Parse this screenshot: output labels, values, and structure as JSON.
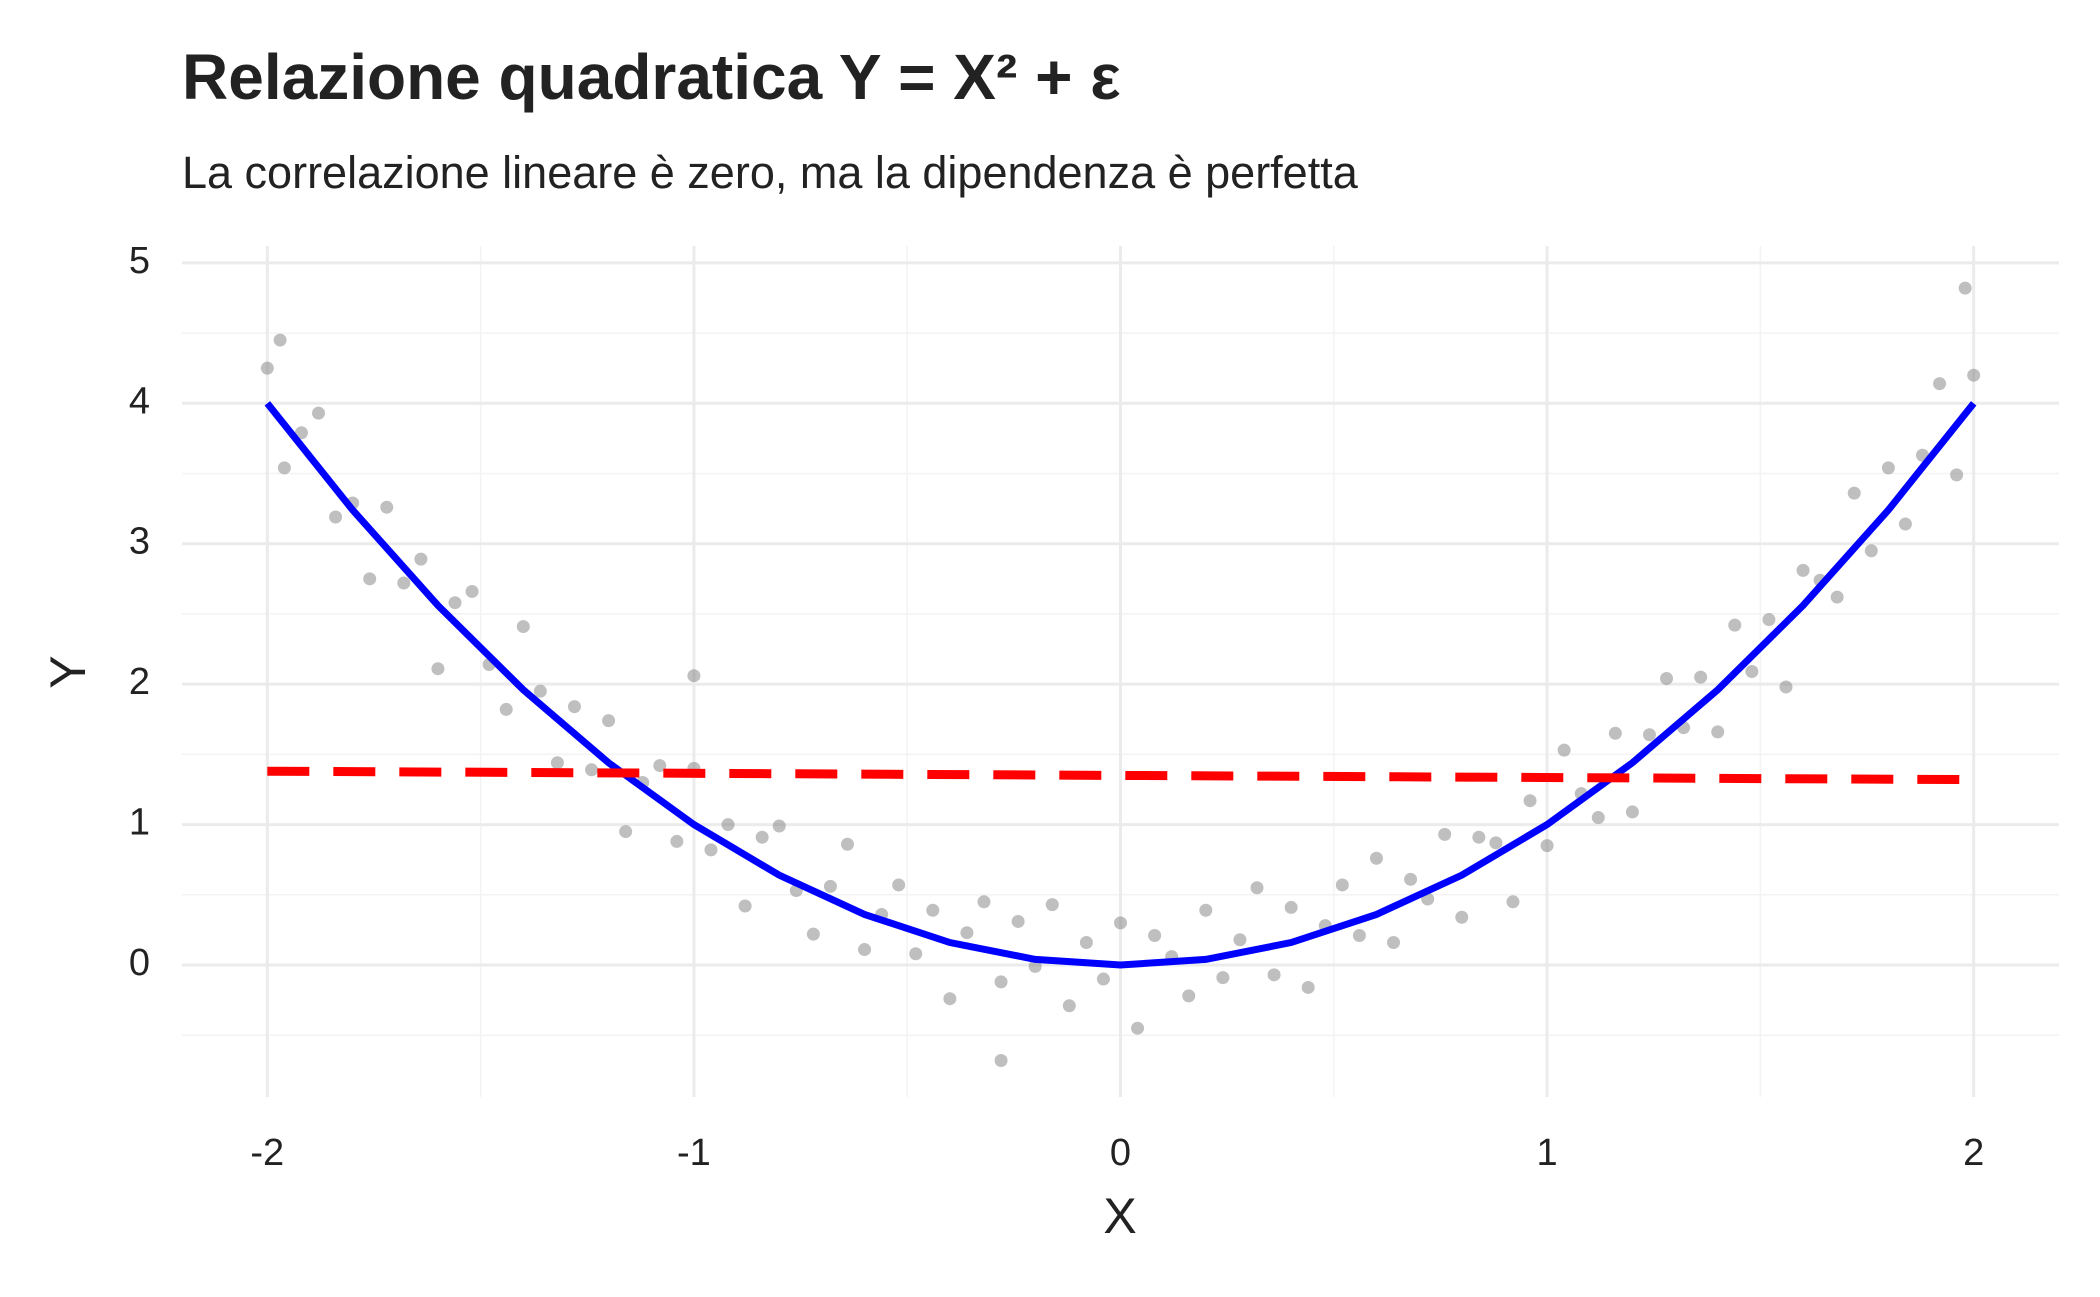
{
  "chart_data": {
    "type": "scatter",
    "title": "Relazione quadratica Y = X² + ε",
    "subtitle": "La correlazione lineare è zero, ma la dipendenza è perfetta",
    "x_label": "X",
    "y_label": "Y",
    "xlim": [
      -2.2,
      2.2
    ],
    "ylim": [
      -0.94,
      5.12
    ],
    "xticks": [
      -2,
      -1,
      0,
      1,
      2
    ],
    "yticks": [
      0,
      1,
      2,
      3,
      4,
      5
    ],
    "minor_xticks": [
      -1.5,
      -0.5,
      0.5,
      1.5
    ],
    "minor_yticks": [
      -0.5,
      0.5,
      1.5,
      2.5,
      3.5,
      4.5
    ],
    "grid": true,
    "series": [
      {
        "type": "scatter",
        "color": "#808080",
        "x": [
          -2.0,
          -1.96,
          -1.92,
          -1.88,
          -1.84,
          -1.8,
          -1.76,
          -1.72,
          -1.68,
          -1.64,
          -1.6,
          -1.56,
          -1.52,
          -1.48,
          -1.44,
          -1.4,
          -1.36,
          -1.32,
          -1.28,
          -1.24,
          -1.2,
          -1.16,
          -1.12,
          -1.08,
          -1.04,
          -1.0,
          -0.96,
          -0.92,
          -0.88,
          -0.84,
          -0.8,
          -0.76,
          -0.72,
          -0.68,
          -0.64,
          -0.6,
          -0.56,
          -0.52,
          -0.48,
          -0.44,
          -0.4,
          -0.36,
          -0.32,
          -0.28,
          -0.24,
          -0.2,
          -0.16,
          -0.12,
          -0.08,
          -0.04,
          0.0,
          0.04,
          0.08,
          0.12,
          0.16,
          0.2,
          0.24,
          0.28,
          0.32,
          0.36,
          0.4,
          0.44,
          0.48,
          0.52,
          0.56,
          0.6,
          0.64,
          0.68,
          0.72,
          0.76,
          0.8,
          0.84,
          0.88,
          0.92,
          0.96,
          1.0,
          1.04,
          1.08,
          1.12,
          1.16,
          1.2,
          1.24,
          1.28,
          1.32,
          1.36,
          1.4,
          1.44,
          1.48,
          1.52,
          1.56,
          1.6,
          1.64,
          1.68,
          1.72,
          1.76,
          1.8,
          1.84,
          1.88,
          1.92,
          1.96,
          2.0,
          1.98,
          -1.97,
          -0.28,
          -1.0
        ],
        "values": [
          4.25,
          3.54,
          3.79,
          3.93,
          3.19,
          3.29,
          2.75,
          3.26,
          2.72,
          2.89,
          2.11,
          2.58,
          2.66,
          2.14,
          1.82,
          2.41,
          1.95,
          1.44,
          1.84,
          1.39,
          1.74,
          0.95,
          1.3,
          1.42,
          0.88,
          1.4,
          0.82,
          1.0,
          0.42,
          0.91,
          0.99,
          0.53,
          0.22,
          0.56,
          0.86,
          0.11,
          0.36,
          0.57,
          0.08,
          0.39,
          -0.24,
          0.23,
          0.45,
          -0.12,
          0.31,
          -0.01,
          0.43,
          -0.29,
          0.16,
          -0.1,
          0.3,
          -0.45,
          0.21,
          0.06,
          -0.22,
          0.39,
          -0.09,
          0.18,
          0.55,
          -0.07,
          0.41,
          -0.16,
          0.28,
          0.57,
          0.21,
          0.76,
          0.16,
          0.61,
          0.47,
          0.93,
          0.34,
          0.91,
          0.87,
          0.45,
          1.17,
          0.85,
          1.53,
          1.22,
          1.05,
          1.65,
          1.09,
          1.64,
          2.04,
          1.69,
          2.05,
          1.66,
          2.42,
          2.09,
          2.46,
          1.98,
          2.81,
          2.74,
          2.62,
          3.36,
          2.95,
          3.54,
          3.14,
          3.63,
          4.14,
          3.49,
          4.2,
          4.82,
          4.45,
          -0.68,
          2.06
        ]
      },
      {
        "type": "line",
        "color": "#0000ff",
        "x": [
          -2.0,
          -1.8,
          -1.6,
          -1.4,
          -1.2,
          -1.0,
          -0.8,
          -0.6,
          -0.4,
          -0.2,
          0.0,
          0.2,
          0.4,
          0.6,
          0.8,
          1.0,
          1.2,
          1.4,
          1.6,
          1.8,
          2.0
        ],
        "values": [
          4.0,
          3.24,
          2.56,
          1.96,
          1.44,
          1.0,
          0.64,
          0.36,
          0.16,
          0.04,
          0.0,
          0.04,
          0.16,
          0.36,
          0.64,
          1.0,
          1.44,
          1.96,
          2.56,
          3.24,
          4.0
        ]
      },
      {
        "type": "line",
        "color": "#ff0000",
        "dashed": true,
        "x": [
          -2.0,
          2.0
        ],
        "values": [
          1.38,
          1.32
        ]
      }
    ]
  }
}
